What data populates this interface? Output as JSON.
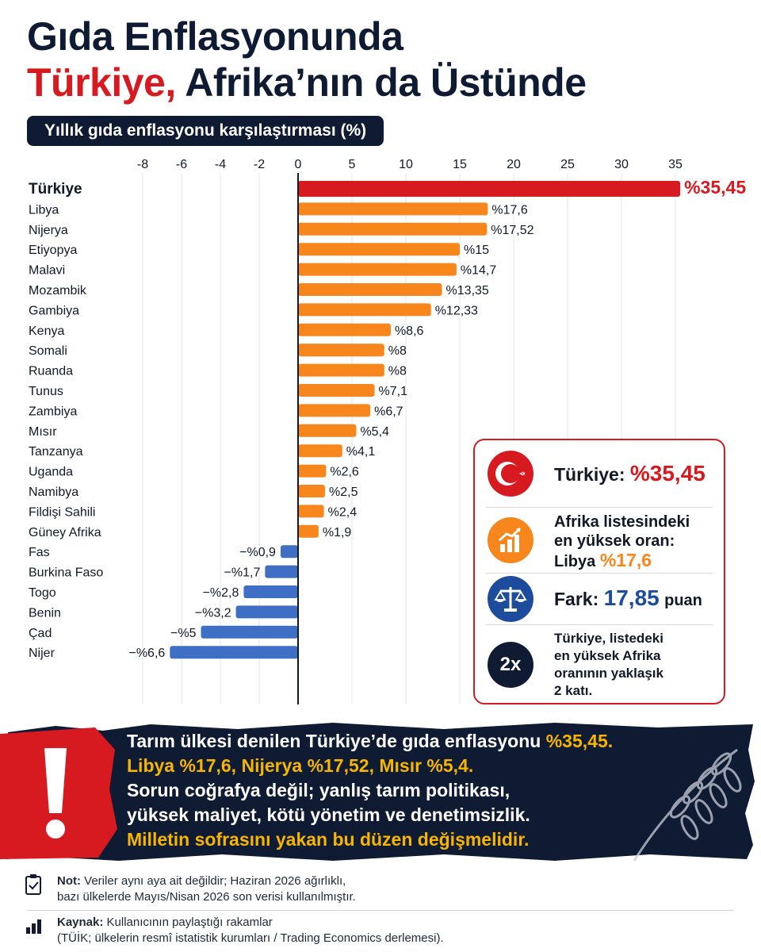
{
  "title_line1": "Gıda Enflasyonunda",
  "title_line2_red": "Türkiye,",
  "title_line2_rest": "Afrika’nın da Üstünde",
  "subtitle": "Yıllık gıda enflasyonu karşılaştırması (%)",
  "chart_data": {
    "type": "bar",
    "orientation": "horizontal",
    "xlim": [
      -8,
      36
    ],
    "ticks": [
      -8,
      -6,
      -4,
      -2,
      0,
      5,
      10,
      15,
      20,
      25,
      30,
      35
    ],
    "categories": [
      "Türkiye",
      "Libya",
      "Nijerya",
      "Etiyopya",
      "Malavi",
      "Mozambik",
      "Gambiya",
      "Kenya",
      "Somali",
      "Ruanda",
      "Tunus",
      "Zambiya",
      "Mısır",
      "Tanzanya",
      "Uganda",
      "Namibya",
      "Fildişi Sahili",
      "Güney Afrika",
      "Fas",
      "Burkina Faso",
      "Togo",
      "Benin",
      "Çad",
      "Nijer"
    ],
    "values": [
      35.45,
      17.6,
      17.52,
      15,
      14.7,
      13.35,
      12.33,
      8.6,
      8,
      8,
      7.1,
      6.7,
      5.4,
      4.1,
      2.6,
      2.5,
      2.4,
      1.9,
      -0.9,
      -1.7,
      -2.8,
      -3.2,
      -5,
      -6.6
    ],
    "value_labels": [
      "%35,45",
      "%17,6",
      "%17,52",
      "%15",
      "%14,7",
      "%13,35",
      "%12,33",
      "%8,6",
      "%8",
      "%8",
      "%7,1",
      "%6,7",
      "%5,4",
      "%4,1",
      "%2,6",
      "%2,5",
      "%2,4",
      "%1,9",
      "−%0,9",
      "−%1,7",
      "−%2,8",
      "−%3,2",
      "−%5",
      "−%6,6"
    ],
    "colors": {
      "highlight": "#d71920",
      "positive": "#f7861c",
      "negative": "#3f6fc4"
    },
    "grid": true
  },
  "infobox": {
    "row1_label": "Türkiye:",
    "row1_value": "%35,45",
    "row2_line1": "Afrika listesindeki",
    "row2_line2": "en yüksek oran:",
    "row2_country": "Libya",
    "row2_value": "%17,6",
    "row3_label": "Fark:",
    "row3_value": "17,85",
    "row3_unit": "puan",
    "row4_badge": "2x",
    "row4_line1": "Türkiye, listedeki",
    "row4_line2": "en yüksek Afrika",
    "row4_line3": "oranının yaklaşık",
    "row4_line4": "2 katı.",
    "icons": [
      "turkish-flag-icon",
      "rising-chart-icon",
      "scales-icon",
      "2x-badge-icon"
    ]
  },
  "banner": {
    "l1a": "Tarım ülkesi denilen Türkiye’de gıda enflasyonu ",
    "l1b": "%35,45.",
    "l2": "Libya %17,6, Nijerya %17,52, Mısır %5,4.",
    "l3": "Sorun coğrafya değil; yanlış tarım politikası,",
    "l4": "yüksek maliyet, kötü yönetim ve denetimsizlik.",
    "l5": "Milletin sofrasını yakan bu düzen değişmelidir.",
    "icon": "exclamation-icon"
  },
  "notes": {
    "note_label": "Not:",
    "note_text1": " Veriler aynı aya ait değildir; Haziran 2026 ağırlıklı,",
    "note_text2": "bazı ülkelerde Mayıs/Nisan 2026 son verisi kullanılmıştır.",
    "source_label": "Kaynak:",
    "source_text1": " Kullanıcının paylaştığı rakamlar",
    "source_text2": "(TÜİK; ülkelerin resmî istatistik kurumları  /  Trading Economics derlemesi)."
  }
}
